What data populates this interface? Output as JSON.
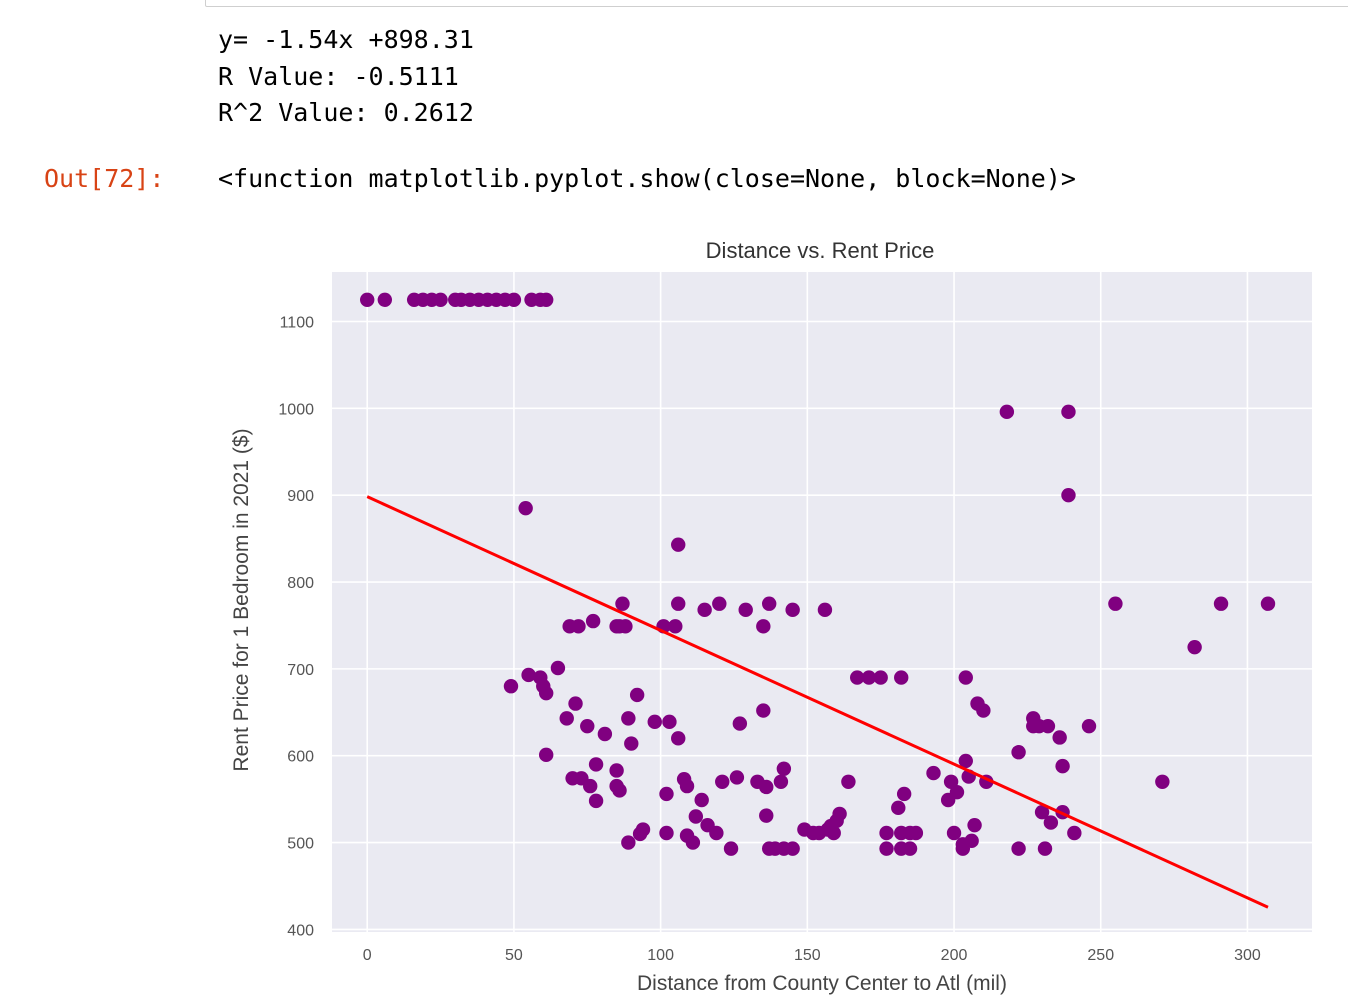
{
  "output": {
    "lines": [
      "y= -1.54x +898.31",
      "R Value: -0.5111",
      "R^2 Value: 0.2612"
    ],
    "out_prompt": "Out[72]:",
    "out_text": "<function matplotlib.pyplot.show(close=None, block=None)>"
  },
  "chart_data": {
    "type": "scatter",
    "title": "Distance vs. Rent Price",
    "xlabel": "Distance from County Center to Atl (mil)",
    "ylabel": "Rent Price for 1 Bedroom in 2021 ($)",
    "xlim": [
      -12,
      322
    ],
    "ylim": [
      397,
      1157
    ],
    "xticks": [
      0,
      50,
      100,
      150,
      200,
      250,
      300
    ],
    "yticks": [
      400,
      500,
      600,
      700,
      800,
      900,
      1000,
      1100
    ],
    "grid": true,
    "colors": {
      "points": "#800080",
      "line": "#ff0000",
      "background": "#eaeaf2",
      "grid": "#ffffff"
    },
    "regression": {
      "slope": -1.54,
      "intercept": 898.31,
      "x_range": [
        0,
        307
      ]
    },
    "points": [
      [
        0,
        1125
      ],
      [
        6,
        1125
      ],
      [
        16,
        1125
      ],
      [
        19,
        1125
      ],
      [
        22,
        1125
      ],
      [
        25,
        1125
      ],
      [
        30,
        1125
      ],
      [
        32,
        1125
      ],
      [
        35,
        1125
      ],
      [
        38,
        1125
      ],
      [
        41,
        1125
      ],
      [
        44,
        1125
      ],
      [
        47,
        1125
      ],
      [
        50,
        1125
      ],
      [
        56,
        1125
      ],
      [
        59,
        1125
      ],
      [
        61,
        1125
      ],
      [
        49,
        680
      ],
      [
        54,
        885
      ],
      [
        55,
        693
      ],
      [
        59,
        690
      ],
      [
        60,
        680
      ],
      [
        61,
        672
      ],
      [
        61,
        601
      ],
      [
        65,
        701
      ],
      [
        68,
        643
      ],
      [
        69,
        749
      ],
      [
        70,
        574
      ],
      [
        71,
        660
      ],
      [
        72,
        749
      ],
      [
        73,
        574
      ],
      [
        75,
        634
      ],
      [
        76,
        565
      ],
      [
        77,
        755
      ],
      [
        78,
        590
      ],
      [
        78,
        548
      ],
      [
        81,
        625
      ],
      [
        85,
        749
      ],
      [
        85,
        583
      ],
      [
        85,
        565
      ],
      [
        86,
        560
      ],
      [
        86,
        749
      ],
      [
        87,
        775
      ],
      [
        88,
        749
      ],
      [
        89,
        643
      ],
      [
        89,
        500
      ],
      [
        90,
        614
      ],
      [
        92,
        670
      ],
      [
        93,
        510
      ],
      [
        94,
        515
      ],
      [
        98,
        639
      ],
      [
        101,
        749
      ],
      [
        102,
        556
      ],
      [
        102,
        511
      ],
      [
        103,
        639
      ],
      [
        105,
        749
      ],
      [
        106,
        843
      ],
      [
        106,
        775
      ],
      [
        106,
        620
      ],
      [
        108,
        573
      ],
      [
        109,
        508
      ],
      [
        109,
        565
      ],
      [
        111,
        500
      ],
      [
        112,
        530
      ],
      [
        114,
        549
      ],
      [
        115,
        768
      ],
      [
        116,
        520
      ],
      [
        119,
        511
      ],
      [
        120,
        775
      ],
      [
        121,
        570
      ],
      [
        124,
        493
      ],
      [
        126,
        575
      ],
      [
        127,
        637
      ],
      [
        129,
        768
      ],
      [
        133,
        570
      ],
      [
        135,
        652
      ],
      [
        135,
        749
      ],
      [
        136,
        564
      ],
      [
        136,
        531
      ],
      [
        137,
        775
      ],
      [
        137,
        493
      ],
      [
        139,
        493
      ],
      [
        141,
        570
      ],
      [
        142,
        585
      ],
      [
        142,
        493
      ],
      [
        145,
        768
      ],
      [
        145,
        493
      ],
      [
        149,
        515
      ],
      [
        152,
        511
      ],
      [
        154,
        511
      ],
      [
        156,
        768
      ],
      [
        157,
        515
      ],
      [
        158,
        519
      ],
      [
        159,
        511
      ],
      [
        160,
        525
      ],
      [
        161,
        533
      ],
      [
        164,
        570
      ],
      [
        167,
        690
      ],
      [
        171,
        690
      ],
      [
        175,
        690
      ],
      [
        177,
        493
      ],
      [
        177,
        511
      ],
      [
        181,
        540
      ],
      [
        182,
        690
      ],
      [
        182,
        511
      ],
      [
        182,
        493
      ],
      [
        183,
        556
      ],
      [
        185,
        511
      ],
      [
        185,
        493
      ],
      [
        187,
        511
      ],
      [
        193,
        580
      ],
      [
        198,
        549
      ],
      [
        199,
        570
      ],
      [
        200,
        511
      ],
      [
        201,
        558
      ],
      [
        203,
        498
      ],
      [
        203,
        493
      ],
      [
        204,
        690
      ],
      [
        204,
        594
      ],
      [
        205,
        576
      ],
      [
        206,
        502
      ],
      [
        207,
        520
      ],
      [
        208,
        660
      ],
      [
        210,
        652
      ],
      [
        211,
        570
      ],
      [
        218,
        996
      ],
      [
        222,
        604
      ],
      [
        222,
        493
      ],
      [
        227,
        643
      ],
      [
        227,
        634
      ],
      [
        229,
        634
      ],
      [
        230,
        535
      ],
      [
        231,
        493
      ],
      [
        232,
        634
      ],
      [
        233,
        523
      ],
      [
        236,
        621
      ],
      [
        237,
        535
      ],
      [
        237,
        588
      ],
      [
        239,
        996
      ],
      [
        239,
        900
      ],
      [
        241,
        511
      ],
      [
        246,
        634
      ],
      [
        255,
        775
      ],
      [
        271,
        570
      ],
      [
        282,
        725
      ],
      [
        291,
        775
      ],
      [
        307,
        775
      ]
    ]
  }
}
